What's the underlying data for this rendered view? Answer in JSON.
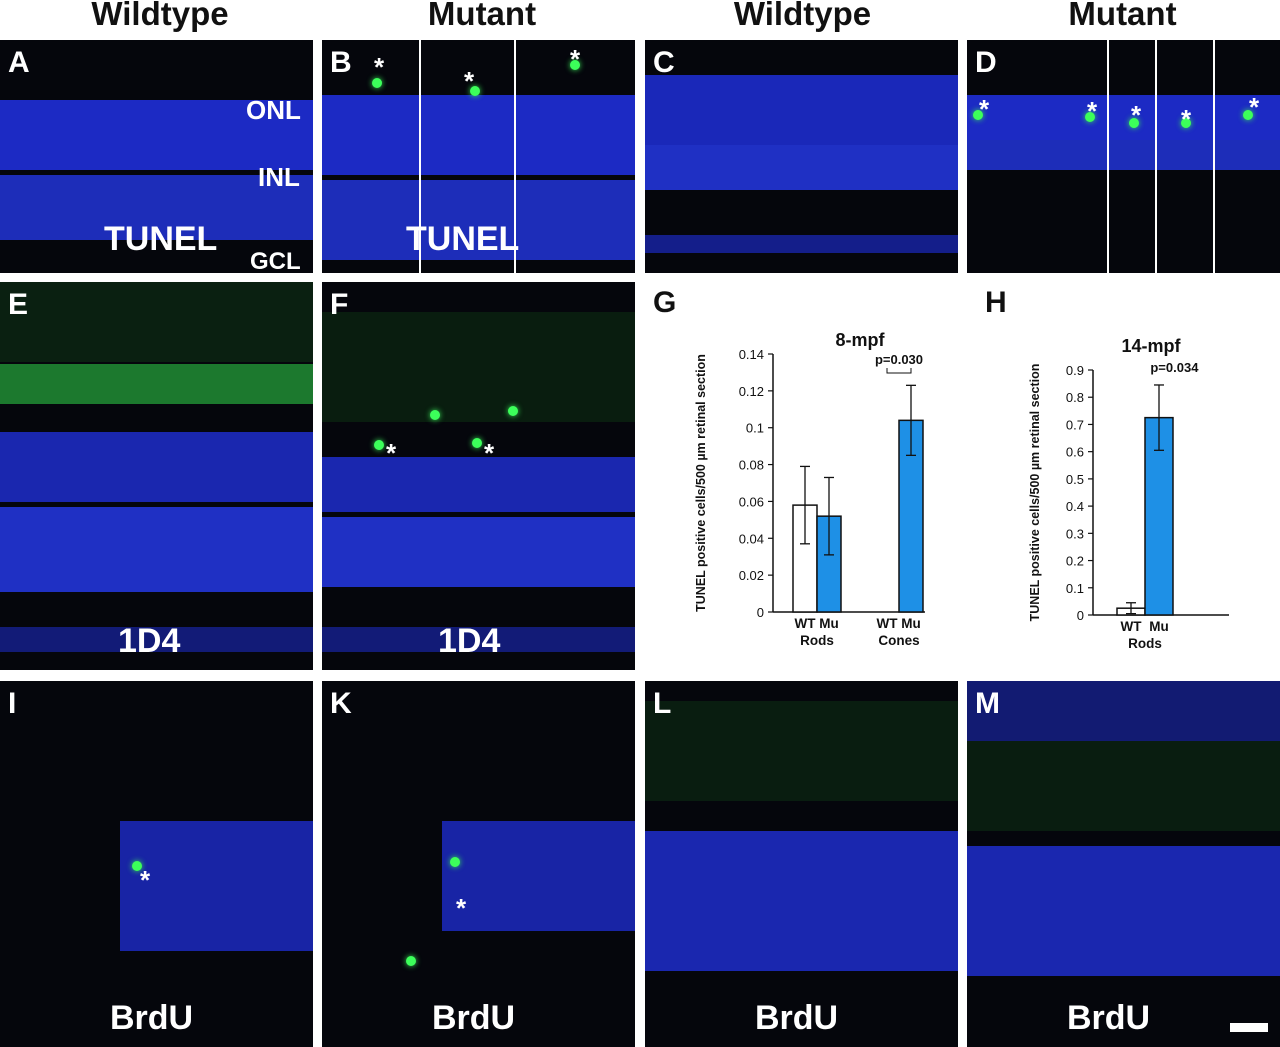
{
  "headers": [
    "Wildtype",
    "Mutant",
    "Wildtype",
    "Mutant"
  ],
  "panel_letters": {
    "a": "A",
    "b": "B",
    "c": "C",
    "d": "D",
    "e": "E",
    "f": "F",
    "g": "G",
    "h": "H",
    "i": "I",
    "k": "K",
    "l": "L",
    "m": "M"
  },
  "stains": {
    "tunel": "TUNEL",
    "one_d4": "1D4",
    "brdu": "BrdU"
  },
  "layers": {
    "onl": "ONL",
    "inl": "INL",
    "gcl": "GCL"
  },
  "asterisk": "*",
  "colors": {
    "nuclei_blue": "#1f2fd8",
    "signal_green": "#3cff5a",
    "bar_mutant": "#1e90e6",
    "bar_wt": "#ffffff"
  },
  "chart_data": [
    {
      "type": "bar",
      "title": "8-mpf",
      "ylabel": "TUNEL positive cells/500 µm retinal section",
      "ylim": [
        0,
        0.14
      ],
      "yticks": [
        "0",
        "0.02",
        "0.04",
        "0.06",
        "0.08",
        "0.1",
        "0.12",
        "0.14"
      ],
      "groups": [
        {
          "name": "Rods",
          "bars": [
            {
              "label": "WT",
              "value": 0.058,
              "err": 0.021
            },
            {
              "label": "Mu",
              "value": 0.052,
              "err": 0.021
            }
          ]
        },
        {
          "name": "Cones",
          "bars": [
            {
              "label": "WT",
              "value": 0,
              "err": 0
            },
            {
              "label": "Mu",
              "value": 0.104,
              "err": 0.019
            }
          ]
        }
      ],
      "annotation": "p=0.030"
    },
    {
      "type": "bar",
      "title": "14-mpf",
      "ylabel": "TUNEL positive cells/500 µm retinal section",
      "ylim": [
        0,
        0.9
      ],
      "yticks": [
        "0",
        "0.1",
        "0.2",
        "0.3",
        "0.4",
        "0.5",
        "0.6",
        "0.7",
        "0.8",
        "0.9"
      ],
      "groups": [
        {
          "name": "Rods",
          "bars": [
            {
              "label": "WT",
              "value": 0.025,
              "err": 0.02
            },
            {
              "label": "Mu",
              "value": 0.725,
              "err": 0.12
            }
          ]
        }
      ],
      "annotation": "p=0.034"
    }
  ]
}
